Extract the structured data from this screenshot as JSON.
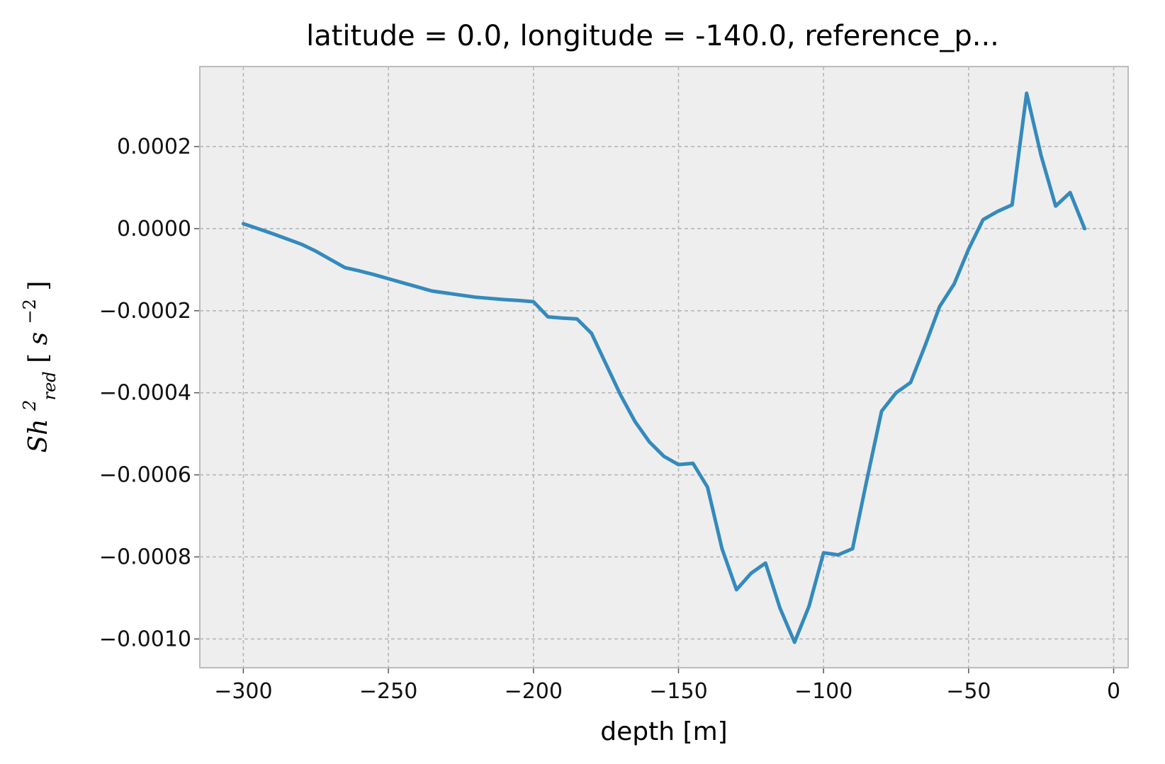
{
  "chart_data": {
    "type": "line",
    "title": "latitude = 0.0, longitude = -140.0, reference_p...",
    "xlabel": "depth [m]",
    "ylabel": {
      "base": "Sh",
      "superscript": "2",
      "subscript": "red",
      "unit_open": " [",
      "unit_base": "s",
      "unit_superscript": "−2",
      "unit_close": "]"
    },
    "xlim": [
      -315,
      5
    ],
    "ylim": [
      -0.00107,
      0.000395
    ],
    "x_ticks": [
      -300,
      -250,
      -200,
      -150,
      -100,
      -50,
      0
    ],
    "x_tick_labels": [
      "−300",
      "−250",
      "−200",
      "−150",
      "−100",
      "−50",
      "0"
    ],
    "y_ticks": [
      0.0002,
      0.0,
      -0.0002,
      -0.0004,
      -0.0006,
      -0.0008,
      -0.001
    ],
    "y_tick_labels": [
      "0.0002",
      "0.0000",
      "−0.0002",
      "−0.0004",
      "−0.0006",
      "−0.0008",
      "−0.0010"
    ],
    "grid": true,
    "colors": {
      "line": "#348ABD",
      "plot_background": "#EEEEEE",
      "grid": "#B2B2B2",
      "spine": "#BCBCBC"
    },
    "series": [
      {
        "x": [
          -300,
          -295,
          -290,
          -285,
          -280,
          -275,
          -270,
          -265,
          -260,
          -255,
          -250,
          -245,
          -240,
          -235,
          -230,
          -225,
          -220,
          -215,
          -210,
          -205,
          -200,
          -195,
          -190,
          -185,
          -180,
          -175,
          -170,
          -165,
          -160,
          -155,
          -150,
          -145,
          -140,
          -135,
          -130,
          -125,
          -120,
          -115,
          -110,
          -105,
          -100,
          -95,
          -90,
          -85,
          -80,
          -75,
          -70,
          -65,
          -60,
          -55,
          -50,
          -45,
          -40,
          -35,
          -30,
          -25,
          -20,
          -15,
          -10
        ],
        "y": [
          1.2e-05,
          0.0,
          -1.2e-05,
          -2.5e-05,
          -3.8e-05,
          -5.5e-05,
          -7.5e-05,
          -9.5e-05,
          -0.000103,
          -0.000112,
          -0.000122,
          -0.000132,
          -0.000142,
          -0.000152,
          -0.000157,
          -0.000162,
          -0.000167,
          -0.00017,
          -0.000173,
          -0.000175,
          -0.000178,
          -0.000215,
          -0.000218,
          -0.00022,
          -0.000255,
          -0.00033,
          -0.000405,
          -0.00047,
          -0.00052,
          -0.000555,
          -0.000575,
          -0.000572,
          -0.00063,
          -0.00078,
          -0.00088,
          -0.00084,
          -0.000815,
          -0.000925,
          -0.001008,
          -0.00092,
          -0.00079,
          -0.000795,
          -0.00078,
          -0.00061,
          -0.000445,
          -0.0004,
          -0.000375,
          -0.000285,
          -0.00019,
          -0.000135,
          -5e-05,
          2.2e-05,
          4.2e-05,
          5.8e-05,
          0.00033,
          0.000178,
          5.5e-05,
          8.8e-05,
          0.0
        ]
      }
    ]
  }
}
